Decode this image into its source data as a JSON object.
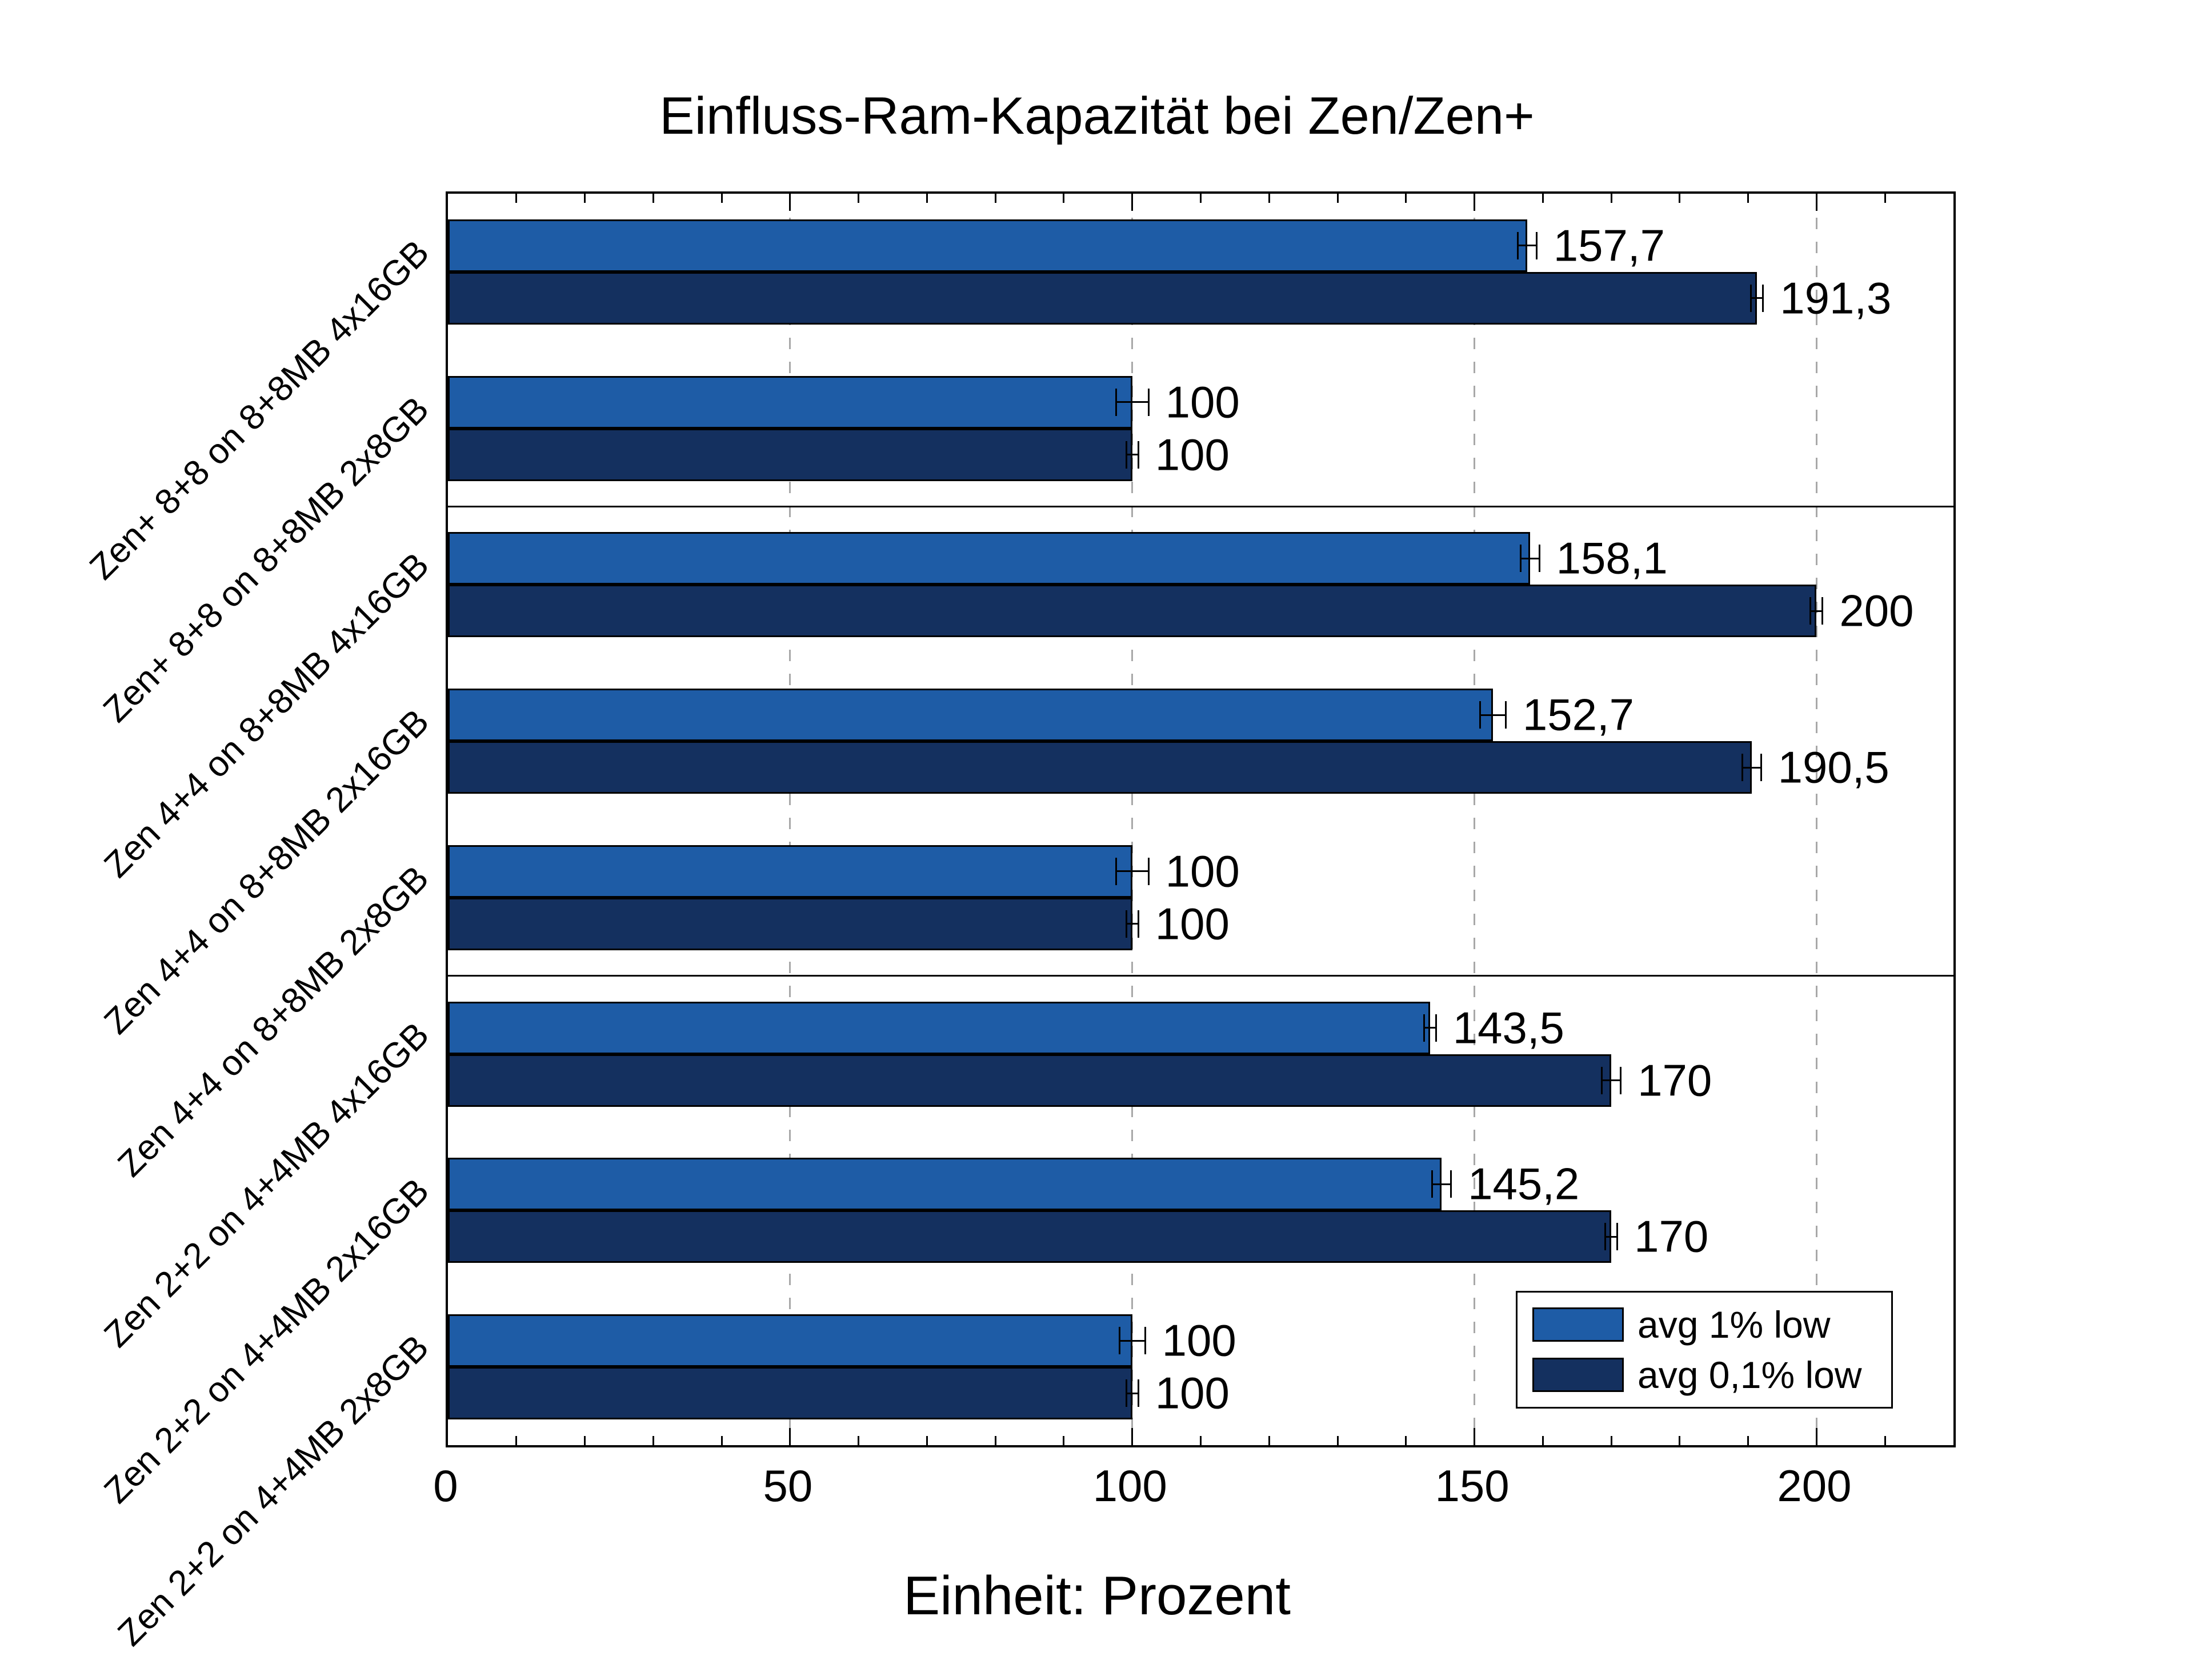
{
  "chart_data": {
    "type": "bar",
    "orientation": "horizontal",
    "title": "Einfluss-Ram-Kapazität bei Zen/Zen+",
    "xlabel": "Einheit: Prozent",
    "xlim": [
      0,
      220
    ],
    "xticks": [
      0,
      50,
      100,
      150,
      200
    ],
    "x_minor_tick_step": 10,
    "grid": "vertical-dashed-at-major-ticks",
    "grid_color": "#a8a8a8",
    "legend_position": "inside-bottom-right",
    "categories": [
      "Zen+ 8+8 on 8+8MB 4x16GB",
      "Zen+ 8+8 on 8+8MB 2x8GB",
      "Zen 4+4 on 8+8MB 4x16GB",
      "Zen 4+4 on 8+8MB 2x16GB",
      "Zen 4+4 on 8+8MB 2x8GB",
      "Zen 2+2 on 4+4MB 4x16GB",
      "Zen 2+2 on 4+4MB 2x16GB",
      "Zen 2+2 on 4+4MB 2x8GB"
    ],
    "group_separators_after_category_index": [
      1,
      4
    ],
    "series": [
      {
        "name": "avg 1% low",
        "color": "#1e5ca6",
        "values": [
          157.7,
          100,
          158.1,
          152.7,
          100,
          143.5,
          145.2,
          100
        ],
        "value_labels": [
          "157,7",
          "100",
          "158,1",
          "152,7",
          "100",
          "143,5",
          "145,2",
          "100"
        ],
        "error_bars": [
          1.5,
          2.5,
          1.5,
          2,
          2.5,
          1,
          1.5,
          2
        ]
      },
      {
        "name": "avg 0,1% low",
        "color": "#14305f",
        "values": [
          191.3,
          100,
          200,
          190.5,
          100,
          170,
          170,
          100
        ],
        "value_labels": [
          "191,3",
          "100",
          "200",
          "190,5",
          "100",
          "170",
          "170",
          "100"
        ],
        "error_bars": [
          1,
          1,
          1,
          1.5,
          1,
          1.5,
          1,
          1
        ]
      }
    ]
  }
}
